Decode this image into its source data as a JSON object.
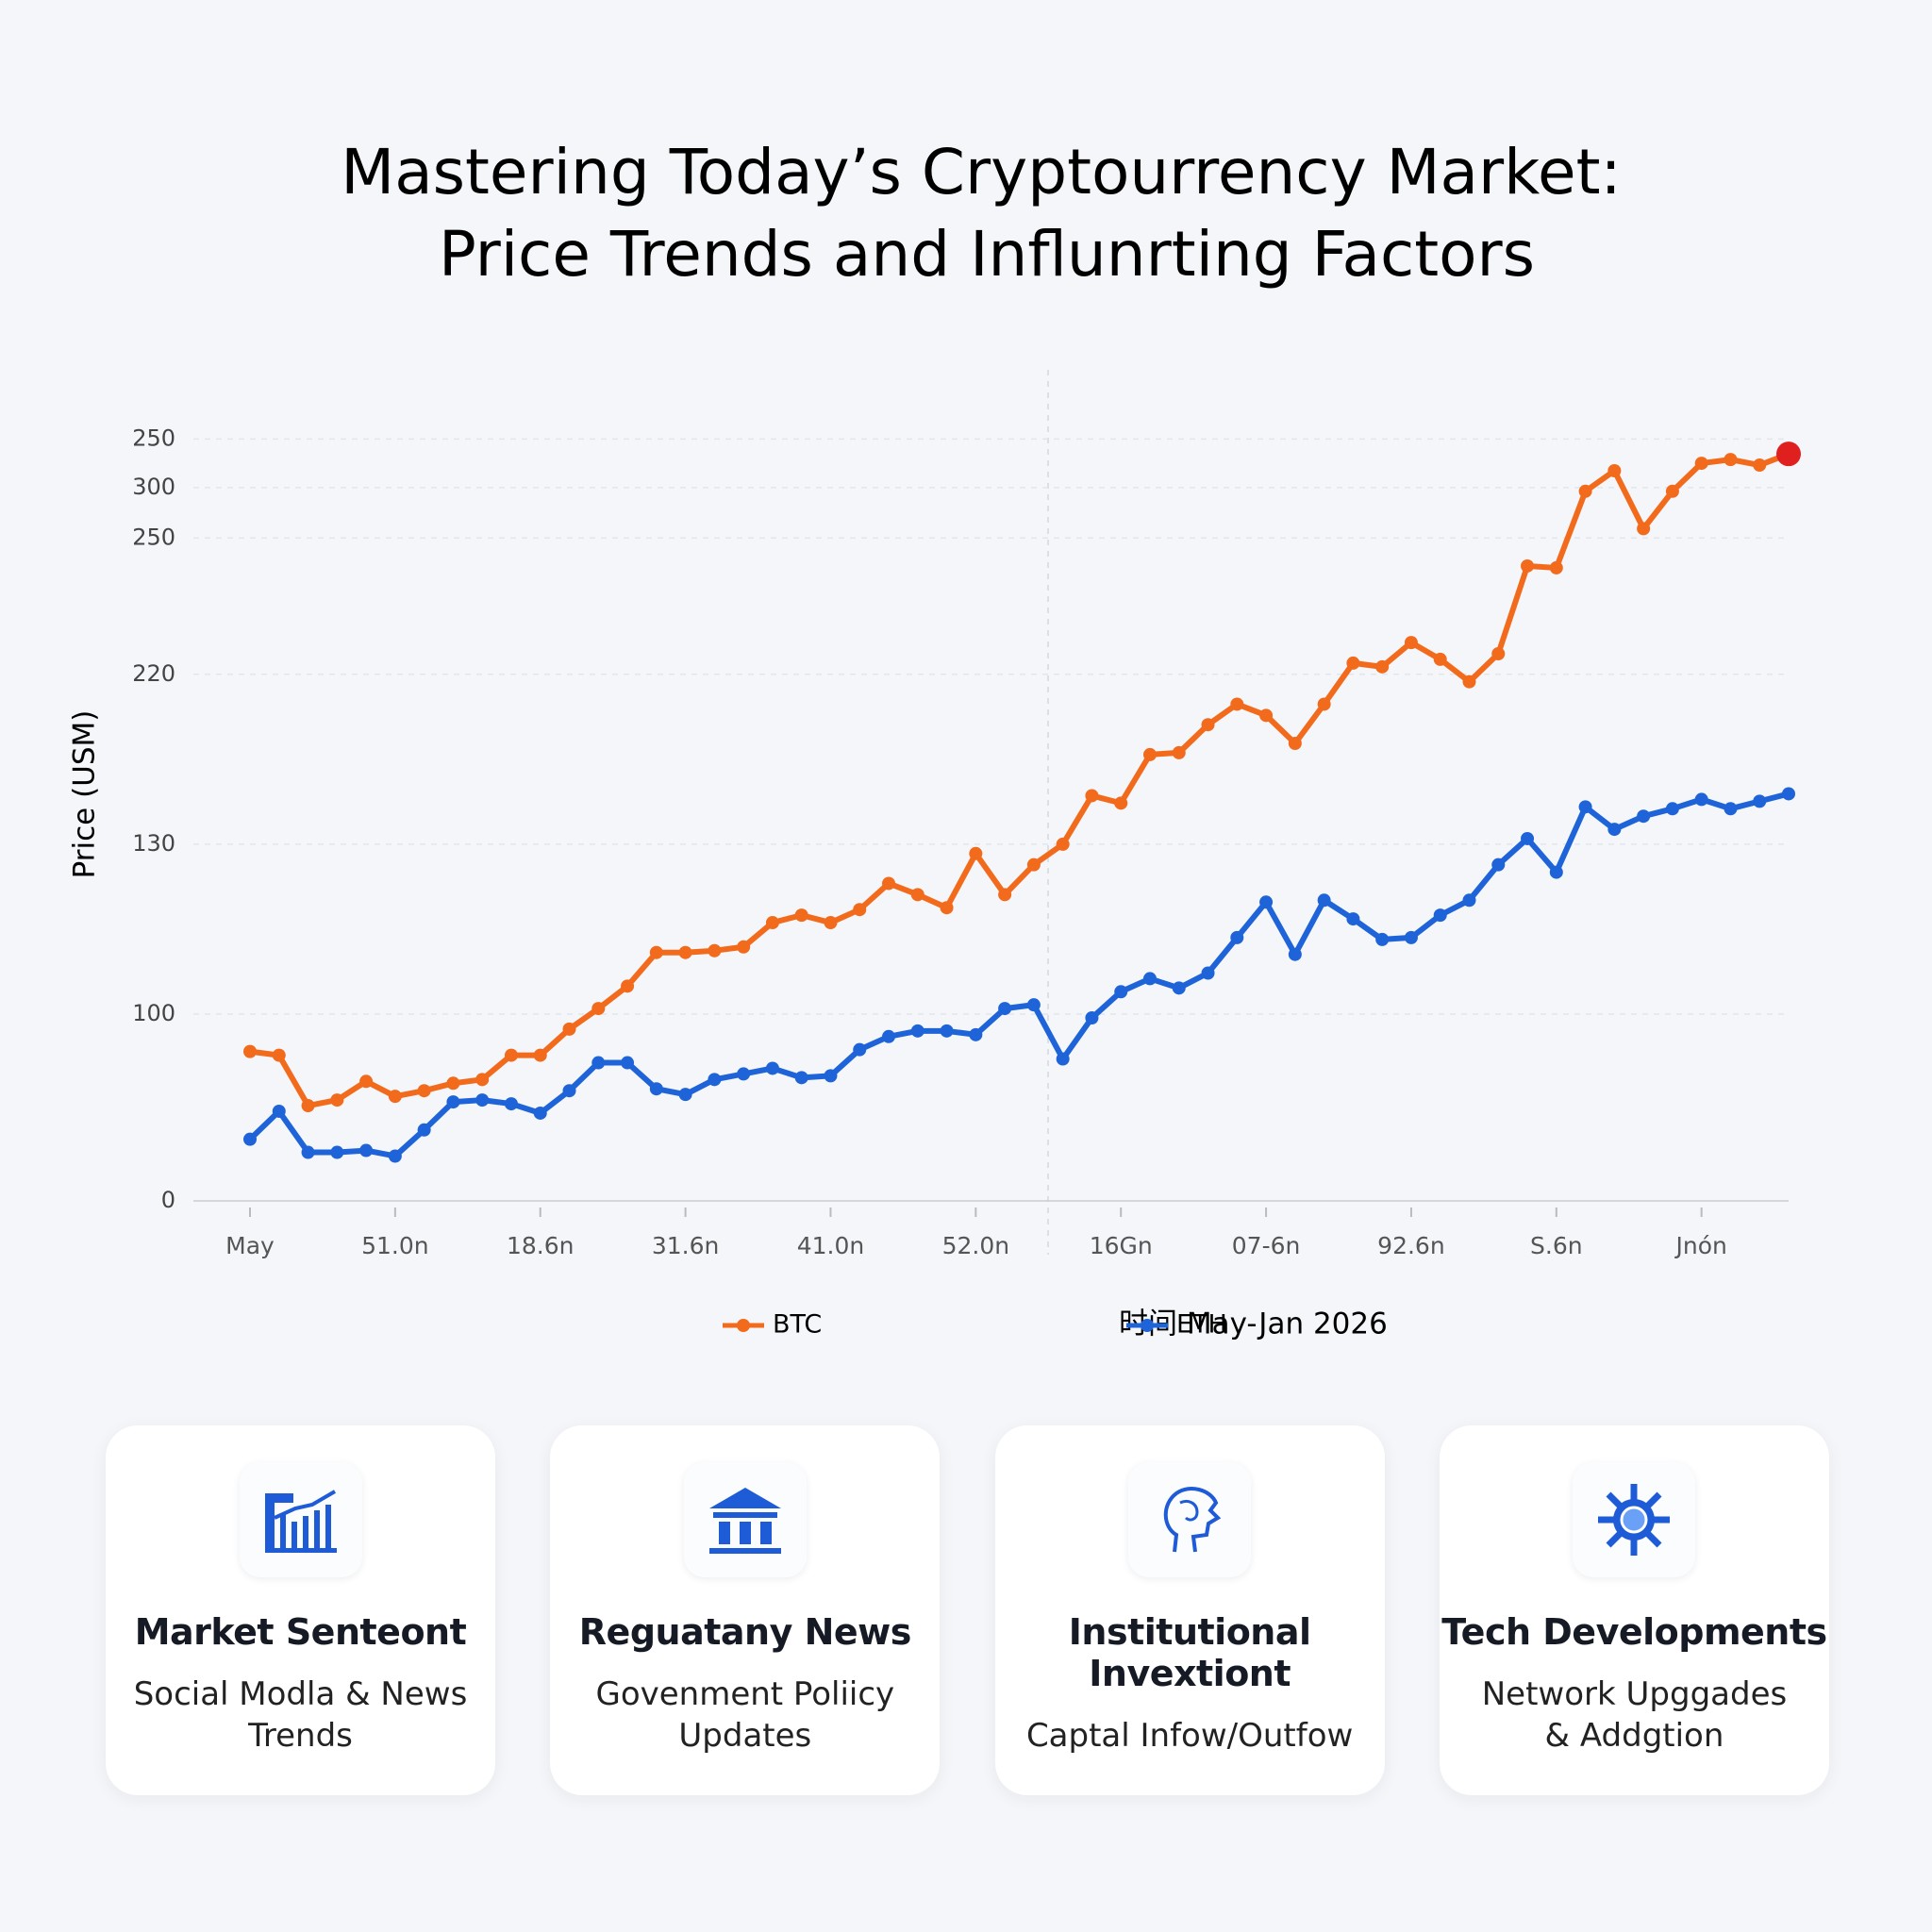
{
  "chart_data": {
    "type": "line",
    "title": [
      "Mastering Today’s Cryptourrency Market:",
      "Price Trends and Influnrting Factors"
    ],
    "y_label": "Price (USM)",
    "x_label": "时间 May-Jan 2026",
    "categories": [
      "May",
      null,
      null,
      null,
      null,
      "51.0n",
      null,
      null,
      null,
      null,
      "18.6n",
      null,
      null,
      null,
      null,
      "31.6n",
      null,
      null,
      null,
      null,
      "41.0n",
      null,
      null,
      null,
      null,
      "52.0n",
      null,
      null,
      null,
      null,
      "16Gn",
      null,
      null,
      null,
      null,
      "07-6n",
      null,
      null,
      null,
      null,
      "92.6n",
      null,
      null,
      null,
      null,
      "S.6n",
      null,
      null,
      null,
      null,
      "Jnón",
      null,
      null,
      null
    ],
    "series": [
      {
        "name": "BTC",
        "color": "#f26b1d",
        "values": [
          80,
          78,
          51,
          54,
          64,
          56,
          59,
          63,
          65,
          78,
          78,
          92,
          103,
          115,
          133,
          133,
          134,
          136,
          149,
          153,
          149,
          156,
          170,
          164,
          157,
          186,
          164,
          180,
          191,
          217,
          213,
          239,
          240,
          255,
          266,
          260,
          245,
          266,
          288,
          286,
          299,
          290,
          278,
          293,
          340,
          339,
          380,
          391,
          360,
          380,
          395,
          397,
          394,
          400
        ]
      },
      {
        "name": "ETH",
        "color": "#1e64d8",
        "values": [
          33,
          48,
          26,
          26,
          27,
          24,
          38,
          53,
          54,
          52,
          47,
          59,
          74,
          74,
          60,
          57,
          65,
          68,
          71,
          66,
          67,
          81,
          88,
          91,
          91,
          89,
          103,
          105,
          76,
          98,
          112,
          119,
          114,
          122,
          141,
          160,
          132,
          161,
          151,
          140,
          141,
          153,
          161,
          180,
          194,
          176,
          211,
          199,
          206,
          210,
          215,
          210,
          214,
          218
        ]
      }
    ],
    "last_point_color": "#e0201e",
    "ylim": [
      0,
      440
    ],
    "yticks": [
      {
        "value": 408,
        "label": "250"
      },
      {
        "value": 382,
        "label": "300"
      },
      {
        "value": 355,
        "label": "250"
      },
      {
        "value": 282,
        "label": "220"
      },
      {
        "value": 191,
        "label": "130"
      },
      100,
      0
    ],
    "grid": true
  },
  "cards": [
    {
      "title": "Market Senteont",
      "subtitle": "Social Modla & News Trends"
    },
    {
      "title": "Reguatany News",
      "subtitle": "Govenment Poliicy Updates"
    },
    {
      "title": "Institutional Invextiont",
      "subtitle": "Captal Infow/Outfow"
    },
    {
      "title": "Tech Developments",
      "subtitle": "Network Upggades & Addgtion"
    }
  ]
}
